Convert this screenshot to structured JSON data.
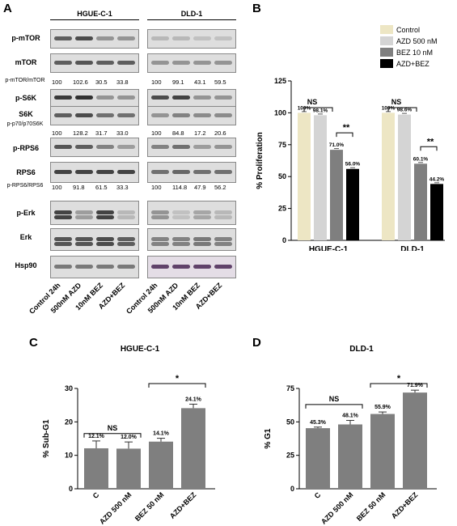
{
  "panels": {
    "a": "A",
    "b": "B",
    "c": "C",
    "d": "D"
  },
  "western": {
    "groups": [
      "HGUE-C-1",
      "DLD-1"
    ],
    "rows": [
      "p-mTOR",
      "mTOR",
      "p-mTOR/mTOR",
      "p-S6K",
      "S6K",
      "p-p70/p70S6K",
      "p-RPS6",
      "RPS6",
      "p-RPS6/RPS6",
      "p-Erk",
      "Erk",
      "Hsp90"
    ],
    "quant": {
      "mtor": {
        "h": [
          "100",
          "102.6",
          "30.5",
          "33.8"
        ],
        "d": [
          "100",
          "99.1",
          "43.1",
          "59.5"
        ]
      },
      "s6k": {
        "h": [
          "100",
          "128.2",
          "31.7",
          "33.0"
        ],
        "d": [
          "100",
          "84.8",
          "17.2",
          "20.6"
        ]
      },
      "rps6": {
        "h": [
          "100",
          "91.8",
          "61.5",
          "33.3"
        ],
        "d": [
          "100",
          "114.8",
          "47.9",
          "56.2"
        ]
      }
    },
    "lanes": [
      "Control 24h",
      "500nM AZD",
      "10nM BEZ",
      "AZD+BEZ"
    ]
  },
  "chart_data": [
    {
      "type": "bar",
      "panel": "B",
      "categories": [
        "HGUE-C-1",
        "DLD-1"
      ],
      "series": [
        {
          "name": "Control",
          "values": [
            100,
            100
          ],
          "labels": [
            "100%",
            "100%"
          ],
          "color": "#ede6c4"
        },
        {
          "name": "AZD 500 nM",
          "values": [
            98.1,
            98.6
          ],
          "labels": [
            "98.1%",
            "98.6%"
          ],
          "color": "#d4d4d4"
        },
        {
          "name": "BEZ 10 nM",
          "values": [
            71.0,
            60.1
          ],
          "labels": [
            "71.0%",
            "60.1%"
          ],
          "color": "#7f7f7f"
        },
        {
          "name": "AZD+BEZ",
          "values": [
            56.0,
            44.2
          ],
          "labels": [
            "56.0%",
            "44.2%"
          ],
          "color": "#000000"
        }
      ],
      "ylabel": "% Proliferation",
      "ylim": [
        0,
        125
      ],
      "yticks": [
        "0",
        "25",
        "50",
        "75",
        "100",
        "125"
      ],
      "annotations": [
        "NS",
        "**",
        "NS",
        "**"
      ],
      "legend": "top-right"
    },
    {
      "type": "bar",
      "panel": "C",
      "title": "HGUE-C-1",
      "categories": [
        "C",
        "AZD 500 nM",
        "BEZ 50 nM",
        "AZD+BEZ"
      ],
      "values": [
        12.1,
        12.0,
        14.1,
        24.1
      ],
      "labels": [
        "12.1%",
        "12.0%",
        "14.1%",
        "24.1%"
      ],
      "ylabel": "% Sub-G1",
      "ylim": [
        0,
        30
      ],
      "yticks": [
        "0",
        "10",
        "20",
        "30"
      ],
      "annotations": [
        "NS",
        "*"
      ],
      "color": "#7f7f7f"
    },
    {
      "type": "bar",
      "panel": "D",
      "title": "DLD-1",
      "categories": [
        "C",
        "AZD 500 nM",
        "BEZ 50 nM",
        "AZD+BEZ"
      ],
      "values": [
        45.3,
        48.1,
        55.9,
        71.9
      ],
      "labels": [
        "45.3%",
        "48.1%",
        "55.9%",
        "71.9%"
      ],
      "ylabel": "% G1",
      "ylim": [
        0,
        75
      ],
      "yticks": [
        "0",
        "25",
        "50",
        "75"
      ],
      "annotations": [
        "NS",
        "*"
      ],
      "color": "#7f7f7f"
    }
  ]
}
